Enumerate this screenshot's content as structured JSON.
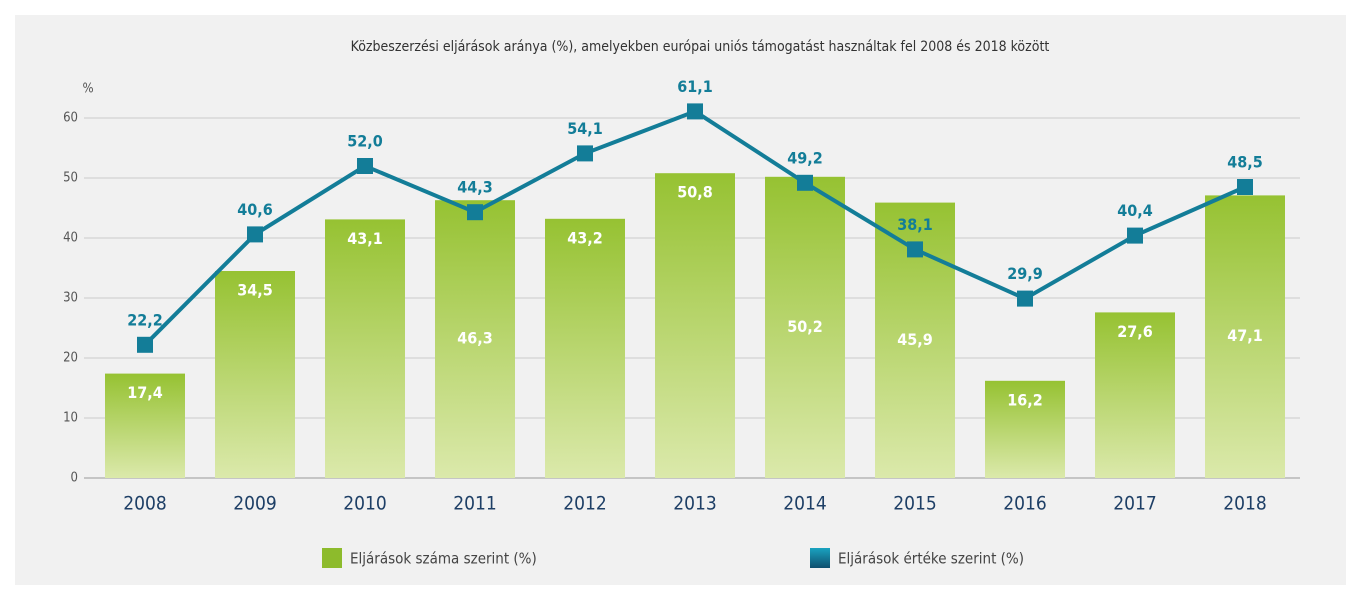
{
  "chart_data": {
    "type": "bar",
    "title": "Közbeszerzési eljárások aránya (%), amelyekben európai uniós támogatást használtak fel 2008 és 2018 között",
    "y_label": "%",
    "categories": [
      "2008",
      "2009",
      "2010",
      "2011",
      "2012",
      "2013",
      "2014",
      "2015",
      "2016",
      "2017",
      "2018"
    ],
    "series": [
      {
        "name": "Eljárások száma szerint (%)",
        "type": "bar",
        "color": "#8dbb2c",
        "values": [
          17.4,
          34.5,
          43.1,
          46.3,
          43.2,
          50.8,
          50.2,
          45.9,
          16.2,
          27.6,
          47.1
        ],
        "value_labels": [
          "17,4",
          "34,5",
          "43,1",
          "46,3",
          "43,2",
          "50,8",
          "50,2",
          "45,9",
          "16,2",
          "27,6",
          "47,1"
        ]
      },
      {
        "name": "Eljárások értéke szerint (%)",
        "type": "line",
        "color": "#137d98",
        "values": [
          22.2,
          40.6,
          52.0,
          44.3,
          54.1,
          61.1,
          49.2,
          38.1,
          29.9,
          40.4,
          48.5
        ],
        "value_labels": [
          "22,2",
          "40,6",
          "52,0",
          "44,3",
          "54,1",
          "61,1",
          "49,2",
          "38,1",
          "29,9",
          "40,4",
          "48,5"
        ]
      }
    ],
    "ylim": [
      0,
      60
    ],
    "yticks": [
      0,
      10,
      20,
      30,
      40,
      50,
      60
    ],
    "grid": true,
    "legend": "bottom"
  }
}
